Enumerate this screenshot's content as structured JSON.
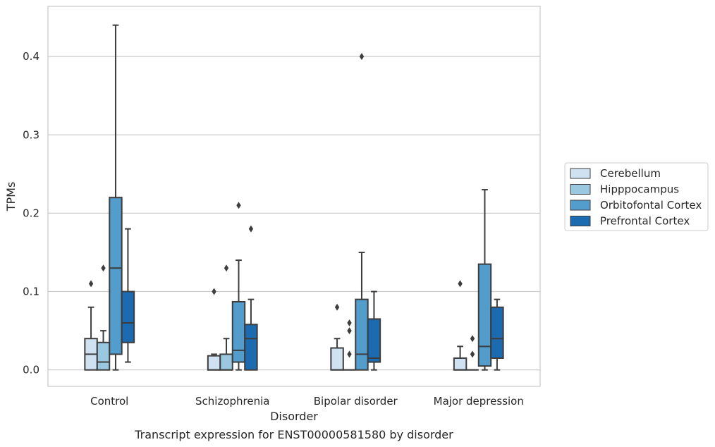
{
  "chart_data": {
    "type": "box",
    "title": "",
    "caption": "Transcript expression for ENST00000581580 by disorder",
    "xlabel": "Disorder",
    "ylabel": "TPMs",
    "ylim": [
      -0.021,
      0.464
    ],
    "yticks": [
      0.0,
      0.1,
      0.2,
      0.3,
      0.4
    ],
    "ytick_labels": [
      "0.0",
      "0.1",
      "0.2",
      "0.3",
      "0.4"
    ],
    "grid": "horizontal",
    "categories": [
      "Control",
      "Schizophrenia",
      "Bipolar disorder",
      "Major depression"
    ],
    "legend_position": "center-right",
    "series": [
      {
        "name": "Cerebellum",
        "color": "#d0e1f2",
        "boxes": [
          {
            "q1": 0.0,
            "median": 0.02,
            "q3": 0.04,
            "whisker_low": 0.0,
            "whisker_high": 0.08,
            "outliers": [
              0.11
            ]
          },
          {
            "q1": 0.0,
            "median": 0.0,
            "q3": 0.018,
            "whisker_low": 0.0,
            "whisker_high": 0.02,
            "outliers": [
              0.1
            ]
          },
          {
            "q1": 0.0,
            "median": 0.0,
            "q3": 0.028,
            "whisker_low": 0.0,
            "whisker_high": 0.04,
            "outliers": [
              0.08
            ]
          },
          {
            "q1": 0.0,
            "median": 0.0,
            "q3": 0.015,
            "whisker_low": 0.0,
            "whisker_high": 0.03,
            "outliers": [
              0.11
            ]
          }
        ]
      },
      {
        "name": "Hipppocampus",
        "color": "#9ac8e0",
        "boxes": [
          {
            "q1": 0.0,
            "median": 0.01,
            "q3": 0.035,
            "whisker_low": 0.0,
            "whisker_high": 0.05,
            "outliers": [
              0.13
            ]
          },
          {
            "q1": 0.0,
            "median": 0.0,
            "q3": 0.02,
            "whisker_low": 0.0,
            "whisker_high": 0.04,
            "outliers": [
              0.13
            ]
          },
          {
            "q1": 0.0,
            "median": 0.0,
            "q3": 0.0,
            "whisker_low": 0.0,
            "whisker_high": 0.0,
            "outliers": [
              0.02,
              0.05,
              0.06
            ]
          },
          {
            "q1": 0.0,
            "median": 0.0,
            "q3": 0.0,
            "whisker_low": 0.0,
            "whisker_high": 0.0,
            "outliers": [
              0.02,
              0.04
            ]
          }
        ]
      },
      {
        "name": "Orbitofontal Cortex",
        "color": "#529dcc",
        "boxes": [
          {
            "q1": 0.02,
            "median": 0.13,
            "q3": 0.22,
            "whisker_low": 0.0,
            "whisker_high": 0.44,
            "outliers": []
          },
          {
            "q1": 0.01,
            "median": 0.025,
            "q3": 0.087,
            "whisker_low": 0.0,
            "whisker_high": 0.14,
            "outliers": [
              0.21
            ]
          },
          {
            "q1": 0.0,
            "median": 0.02,
            "q3": 0.09,
            "whisker_low": 0.0,
            "whisker_high": 0.15,
            "outliers": [
              0.4
            ]
          },
          {
            "q1": 0.005,
            "median": 0.03,
            "q3": 0.135,
            "whisker_low": 0.0,
            "whisker_high": 0.23,
            "outliers": []
          }
        ]
      },
      {
        "name": "Prefrontal Cortex",
        "color": "#1c6aaf",
        "boxes": [
          {
            "q1": 0.035,
            "median": 0.06,
            "q3": 0.1,
            "whisker_low": 0.01,
            "whisker_high": 0.18,
            "outliers": []
          },
          {
            "q1": 0.0,
            "median": 0.04,
            "q3": 0.058,
            "whisker_low": 0.0,
            "whisker_high": 0.09,
            "outliers": [
              0.18
            ]
          },
          {
            "q1": 0.01,
            "median": 0.015,
            "q3": 0.065,
            "whisker_low": 0.0,
            "whisker_high": 0.1,
            "outliers": []
          },
          {
            "q1": 0.015,
            "median": 0.04,
            "q3": 0.08,
            "whisker_low": 0.0,
            "whisker_high": 0.09,
            "outliers": []
          }
        ]
      }
    ]
  }
}
